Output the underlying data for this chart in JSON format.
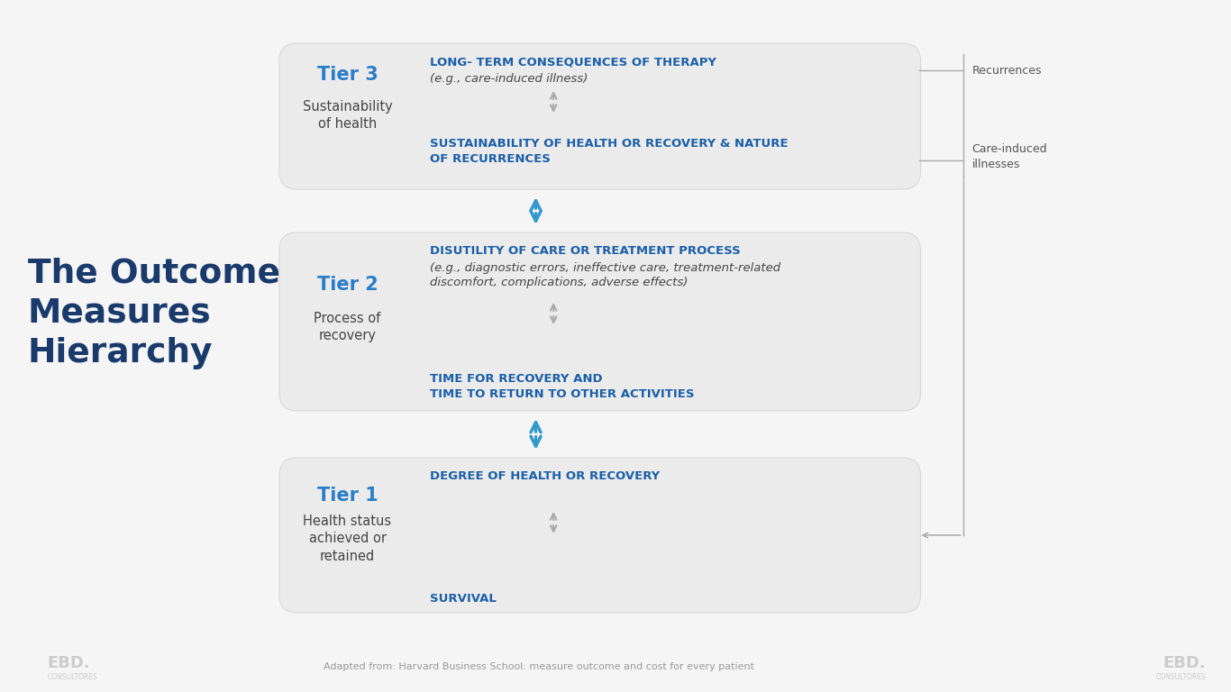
{
  "bg_color": "#f5f5f5",
  "title_text": "The Outcome\nMeasures\nHierarchy",
  "title_color": "#1a3a6b",
  "box_fill": "#ebebeb",
  "box_edge": "#d8d8d8",
  "tier_color": "#2a7dc9",
  "heading_color": "#1a5fa8",
  "body_color": "#444444",
  "arrow_blue": "#3399cc",
  "arrow_gray": "#aaaaaa",
  "tier3": {
    "label": "Tier 3",
    "sublabel": "Sustainability\nof health",
    "heading1": "LONG- TERM CONSEQUENCES OF THERAPY",
    "italic1": "(e.g., care-induced illness)",
    "heading2": "SUSTAINABILITY OF HEALTH OR RECOVERY & NATURE\nOF RECURRENCES"
  },
  "tier2": {
    "label": "Tier 2",
    "sublabel": "Process of\nrecovery",
    "heading1": "DISUTILITY OF CARE OR TREATMENT PROCESS",
    "italic1": "(e.g., diagnostic errors, ineffective care, treatment-related\ndiscomfort, complications, adverse effects)",
    "heading2": "TIME FOR RECOVERY AND\nTIME TO RETURN TO OTHER ACTIVITIES"
  },
  "tier1": {
    "label": "Tier 1",
    "sublabel": "Health status\nachieved or\nretained",
    "heading1": "DEGREE OF HEALTH OR RECOVERY",
    "heading2": "SURVIVAL"
  },
  "side_label1": "Recurrences",
  "side_label2": "Care-induced\nillnesses",
  "footnote": "Adapted from: Harvard Business School: measure outcome and cost for every patient",
  "ebd_text": "EBD.",
  "ebd_subtext": "CONSULTORES"
}
